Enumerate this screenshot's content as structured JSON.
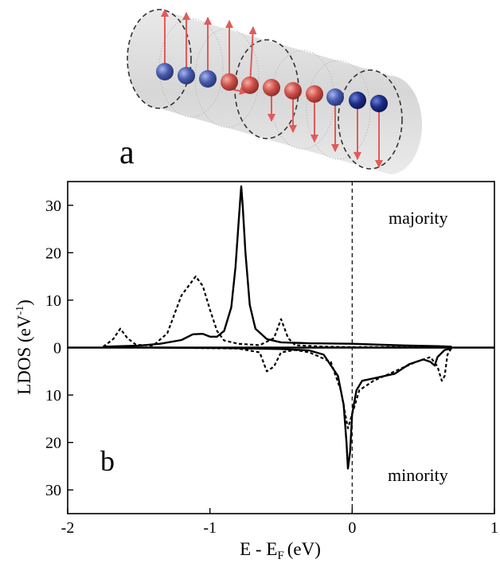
{
  "panel_a": {
    "label": "a",
    "spin_colors": {
      "blue": "#4a5cb0",
      "red": "#d0514c",
      "dark_blue": "#1e2f8c",
      "arrow": "#e25a5a"
    }
  },
  "chart_data": {
    "type": "line",
    "panel_label": "b",
    "xlabel": "E - E",
    "xlabel_sub": "F",
    "xlabel_unit": "(eV)",
    "ylabel": "LDOS (eV",
    "ylabel_sup": "-1",
    "ylabel_close": ")",
    "xlim": [
      -2,
      1
    ],
    "ylim": [
      -35,
      35
    ],
    "x_ticks": [
      -2,
      -1,
      0,
      1
    ],
    "x_tick_labels": [
      "-2",
      "-1",
      "0",
      "1"
    ],
    "y_ticks": [
      30,
      20,
      10,
      0,
      -10,
      -20,
      -30
    ],
    "y_tick_labels": [
      "30",
      "20",
      "10",
      "0",
      "10",
      "20",
      "30"
    ],
    "fermi_line_x": 0,
    "annotations": [
      "majority",
      "minority"
    ],
    "series": [
      {
        "style": "solid",
        "x": [
          -1.75,
          -1.5,
          -1.35,
          -1.2,
          -1.12,
          -1.05,
          -1.0,
          -0.95,
          -0.9,
          -0.85,
          -0.82,
          -0.79,
          -0.78,
          -0.77,
          -0.75,
          -0.72,
          -0.68,
          -0.6,
          -0.5,
          -0.3,
          0.0,
          0.3,
          0.6,
          0.7
        ],
        "y": [
          0.2,
          0.4,
          0.8,
          1.6,
          2.8,
          2.9,
          2.3,
          2.3,
          3.5,
          8.5,
          17.0,
          30.0,
          34.0,
          30.0,
          20.0,
          9.0,
          4.0,
          1.8,
          1.1,
          0.9,
          0.8,
          0.5,
          0.3,
          0.2
        ]
      },
      {
        "style": "dashed",
        "x": [
          -1.75,
          -1.68,
          -1.63,
          -1.58,
          -1.52,
          -1.4,
          -1.3,
          -1.2,
          -1.1,
          -1.05,
          -1.0,
          -0.95,
          -0.9,
          -0.8,
          -0.65,
          -0.55,
          -0.5,
          -0.45,
          -0.4,
          -0.2,
          0.0,
          0.3,
          0.7
        ],
        "y": [
          0.2,
          1.8,
          4.0,
          2.0,
          0.6,
          0.4,
          3.0,
          11.0,
          15.0,
          13.0,
          8.0,
          3.5,
          1.5,
          0.8,
          0.5,
          2.0,
          6.0,
          2.0,
          0.5,
          0.2,
          0.1,
          0.1,
          0.0
        ]
      },
      {
        "style": "solid",
        "x": [
          -1.4,
          -0.9,
          -0.5,
          -0.3,
          -0.2,
          -0.1,
          -0.06,
          -0.04,
          -0.03,
          -0.015,
          0.0,
          0.03,
          0.07,
          0.15,
          0.3,
          0.4,
          0.5,
          0.55,
          0.58,
          0.6,
          0.65,
          0.7
        ],
        "y": [
          0.0,
          -0.1,
          -0.3,
          -0.6,
          -1.5,
          -6.0,
          -12.0,
          -20.0,
          -25.5,
          -22.0,
          -14.0,
          -9.0,
          -7.0,
          -6.5,
          -5.5,
          -3.5,
          -2.5,
          -3.0,
          -3.8,
          -2.0,
          -0.5,
          -0.2
        ]
      },
      {
        "style": "dashed",
        "x": [
          -1.3,
          -0.8,
          -0.65,
          -0.6,
          -0.55,
          -0.5,
          -0.4,
          -0.3,
          -0.15,
          -0.08,
          -0.03,
          0.0,
          0.05,
          0.15,
          0.3,
          0.45,
          0.55,
          0.6,
          0.63,
          0.65,
          0.67,
          0.7
        ],
        "y": [
          0.0,
          -0.2,
          -1.0,
          -5.0,
          -4.0,
          -1.0,
          -0.5,
          -1.0,
          -3.0,
          -9.0,
          -17.0,
          -14.0,
          -9.0,
          -7.0,
          -5.0,
          -3.0,
          -2.0,
          -4.0,
          -7.0,
          -6.0,
          -1.5,
          0.0
        ]
      }
    ]
  }
}
